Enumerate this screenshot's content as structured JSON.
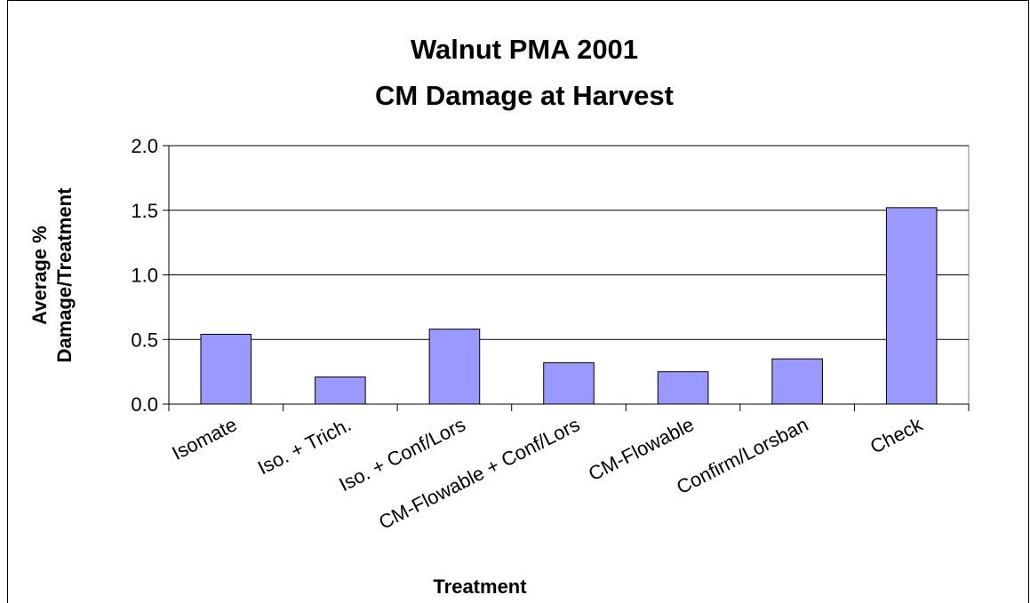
{
  "chart_data": {
    "type": "bar",
    "title": [
      "Walnut PMA 2001",
      "CM Damage at Harvest"
    ],
    "xlabel": "Treatment",
    "ylabel": [
      "Average %",
      "Damage/Treatment"
    ],
    "categories": [
      "Isomate",
      "Iso. + Trich.",
      "Iso. + Conf/Lors",
      "CM-Flowable + Conf/Lors",
      "CM-Flowable",
      "Confirm/Lorsban",
      "Check"
    ],
    "values": [
      0.54,
      0.21,
      0.58,
      0.32,
      0.25,
      0.35,
      1.52
    ],
    "color": "#9999ff",
    "ylim": [
      0,
      2
    ],
    "yticks": [
      {
        "value": 0,
        "label": "0.0"
      },
      0.5,
      {
        "value": 1,
        "label": "1.0"
      },
      1.5,
      {
        "value": 2,
        "label": "2.0"
      }
    ],
    "grid": true
  }
}
